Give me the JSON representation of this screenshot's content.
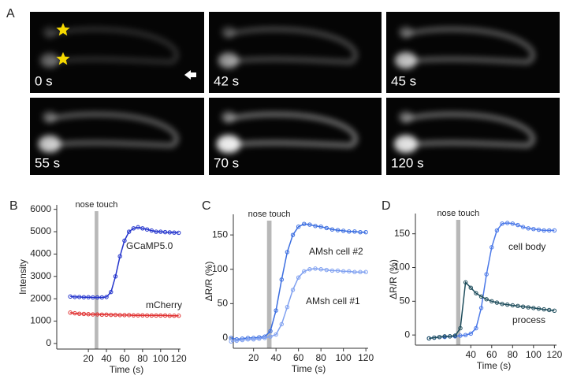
{
  "panel_labels": [
    "A",
    "B",
    "C",
    "D"
  ],
  "images": [
    {
      "label": "0 s"
    },
    {
      "label": "42 s"
    },
    {
      "label": "45 s"
    },
    {
      "label": "55 s"
    },
    {
      "label": "70 s"
    },
    {
      "label": "120 s"
    }
  ],
  "chart_data": [
    {
      "type": "line",
      "y_label": "Intensity",
      "x_label": "Time (s)",
      "annotation": {
        "text": "nose touch",
        "x": [
          27,
          31
        ]
      },
      "x": [
        0,
        5,
        10,
        15,
        20,
        25,
        30,
        35,
        40,
        45,
        50,
        55,
        60,
        65,
        70,
        75,
        80,
        85,
        90,
        95,
        100,
        105,
        110,
        115,
        120
      ],
      "series": [
        {
          "name": "GCaMP5.0",
          "color": "#2233cc",
          "values": [
            2100,
            2080,
            2080,
            2070,
            2070,
            2060,
            2060,
            2060,
            2080,
            2300,
            3000,
            3900,
            4600,
            5000,
            5150,
            5200,
            5150,
            5100,
            5050,
            5000,
            5000,
            4980,
            4970,
            4960,
            4950
          ]
        },
        {
          "name": "mCherry",
          "color": "#e03030",
          "values": [
            1380,
            1350,
            1330,
            1320,
            1310,
            1300,
            1300,
            1290,
            1290,
            1280,
            1280,
            1270,
            1270,
            1270,
            1260,
            1260,
            1260,
            1250,
            1250,
            1250,
            1250,
            1250,
            1240,
            1240,
            1240
          ]
        }
      ],
      "xlim": [
        -15,
        122
      ],
      "xticks": [
        20,
        40,
        60,
        80,
        100,
        120
      ],
      "ylim": [
        -250,
        6200
      ],
      "yticks": [
        0,
        1000,
        2000,
        3000,
        4000,
        5000,
        6000
      ]
    },
    {
      "type": "line",
      "y_label": "ΔR/R  (%)",
      "x_label": "Time (s)",
      "annotation": {
        "text": "nose touch",
        "x": [
          32,
          36
        ]
      },
      "x": [
        0,
        5,
        10,
        15,
        20,
        25,
        30,
        35,
        40,
        45,
        50,
        55,
        60,
        65,
        70,
        75,
        80,
        85,
        90,
        95,
        100,
        105,
        110,
        115,
        120
      ],
      "series": [
        {
          "name": "AMsh cell #2",
          "color": "#3a6de0",
          "values": [
            0,
            -2,
            -1,
            0,
            0,
            1,
            2,
            10,
            40,
            85,
            125,
            150,
            162,
            166,
            165,
            163,
            162,
            160,
            158,
            157,
            156,
            155,
            155,
            154,
            154
          ]
        },
        {
          "name": "AMsh cell #1",
          "color": "#7fa0f0",
          "values": [
            -5,
            -4,
            -3,
            -2,
            -2,
            -1,
            0,
            2,
            5,
            20,
            45,
            70,
            88,
            97,
            100,
            101,
            100,
            99,
            98,
            98,
            97,
            97,
            96,
            96,
            96
          ]
        }
      ],
      "xlim": [
        2,
        122
      ],
      "xticks": [
        20,
        40,
        60,
        80,
        100,
        120
      ],
      "ylim": [
        -15,
        180
      ],
      "yticks": [
        0,
        50,
        100,
        150
      ]
    },
    {
      "type": "line",
      "y_label": "ΔR/R  (%)",
      "x_label": "Time (s)",
      "annotation": {
        "text": "nose touch",
        "x": [
          26,
          30
        ]
      },
      "x": [
        0,
        5,
        10,
        15,
        20,
        25,
        30,
        35,
        40,
        45,
        50,
        55,
        60,
        65,
        70,
        75,
        80,
        85,
        90,
        95,
        100,
        105,
        110,
        115,
        120
      ],
      "series": [
        {
          "name": "cell body",
          "color": "#4a78e8",
          "values": [
            -5,
            -4,
            -3,
            -3,
            -2,
            -2,
            -1,
            0,
            2,
            10,
            40,
            90,
            130,
            155,
            165,
            166,
            165,
            163,
            160,
            158,
            157,
            156,
            155,
            155,
            155
          ]
        },
        {
          "name": "process",
          "color": "#1e4d5c",
          "values": [
            -5,
            -4,
            -3,
            -2,
            -2,
            -1,
            10,
            78,
            70,
            62,
            57,
            53,
            50,
            48,
            46,
            45,
            44,
            43,
            42,
            41,
            40,
            39,
            38,
            37,
            36
          ]
        }
      ],
      "xlim": [
        -13,
        122
      ],
      "xticks": [
        40,
        60,
        80,
        100,
        120
      ],
      "ylim": [
        -15,
        180
      ],
      "yticks": [
        0,
        50,
        100,
        150
      ]
    }
  ]
}
